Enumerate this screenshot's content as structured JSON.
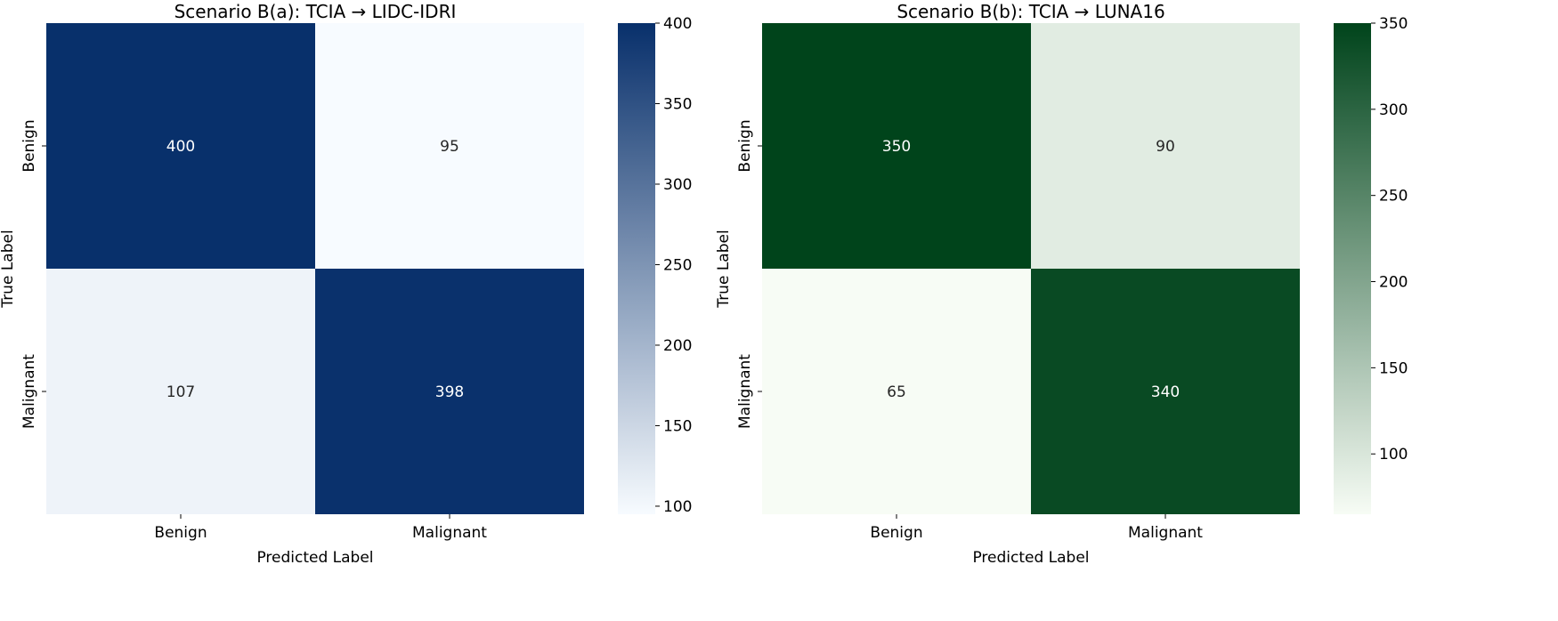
{
  "chart_data": [
    {
      "type": "heatmap",
      "title": "Scenario B(a): TCIA → LIDC-IDRI",
      "xlabel": "Predicted Label",
      "ylabel": "True Label",
      "x_categories": [
        "Benign",
        "Malignant"
      ],
      "y_categories": [
        "Benign",
        "Malignant"
      ],
      "values": [
        [
          400,
          95
        ],
        [
          107,
          398
        ]
      ],
      "colormap": "Blues",
      "color_low": "#f7fbff",
      "color_high": "#08306b",
      "colorbar_range": [
        95,
        400
      ],
      "colorbar_ticks": [
        100,
        150,
        200,
        250,
        300,
        350,
        400
      ]
    },
    {
      "type": "heatmap",
      "title": "Scenario B(b): TCIA → LUNA16",
      "xlabel": "Predicted Label",
      "ylabel": "True Label",
      "x_categories": [
        "Benign",
        "Malignant"
      ],
      "y_categories": [
        "Benign",
        "Malignant"
      ],
      "values": [
        [
          350,
          90
        ],
        [
          65,
          340
        ]
      ],
      "colormap": "Greens",
      "color_low": "#f7fcf5",
      "color_high": "#00441b",
      "colorbar_range": [
        65,
        350
      ],
      "colorbar_ticks": [
        100,
        150,
        200,
        250,
        300,
        350
      ]
    }
  ]
}
